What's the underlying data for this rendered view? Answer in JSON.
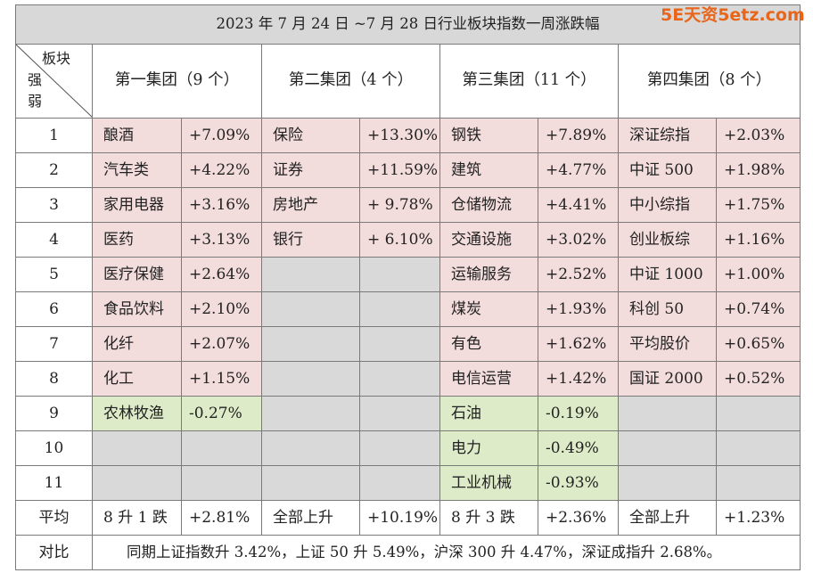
{
  "title": "2023 年 7 月 24 日 ~7 月 28 日行业板块指数一周涨跌幅",
  "corner": {
    "top": "板块",
    "bottom1": "强",
    "bottom2": "弱"
  },
  "groups": [
    "第一集团（9 个）",
    "第二集团（4 个）",
    "第三集团（11 个）",
    "第四集团（8 个）"
  ],
  "rows": [
    {
      "rank": "1",
      "cells": [
        {
          "n": "酿酒",
          "v": "+7.09%",
          "c": "pink"
        },
        {
          "n": "保险",
          "v": "+13.30%",
          "c": "pink"
        },
        {
          "n": "钢铁",
          "v": "+7.89%",
          "c": "pink"
        },
        {
          "n": "深证综指",
          "v": "+2.03%",
          "c": "pink"
        }
      ]
    },
    {
      "rank": "2",
      "cells": [
        {
          "n": "汽车类",
          "v": "+4.22%",
          "c": "pink"
        },
        {
          "n": "证券",
          "v": "+11.59%",
          "c": "pink"
        },
        {
          "n": "建筑",
          "v": "+4.77%",
          "c": "pink"
        },
        {
          "n": "中证 500",
          "v": "+1.98%",
          "c": "pink"
        }
      ]
    },
    {
      "rank": "3",
      "cells": [
        {
          "n": "家用电器",
          "v": "+3.16%",
          "c": "pink"
        },
        {
          "n": "房地产",
          "v": "+ 9.78%",
          "c": "pink"
        },
        {
          "n": "仓储物流",
          "v": "+4.41%",
          "c": "pink"
        },
        {
          "n": "中小综指",
          "v": "+1.75%",
          "c": "pink"
        }
      ]
    },
    {
      "rank": "4",
      "cells": [
        {
          "n": "医药",
          "v": "+3.13%",
          "c": "pink"
        },
        {
          "n": "银行",
          "v": "+ 6.10%",
          "c": "pink"
        },
        {
          "n": "交通设施",
          "v": "+3.02%",
          "c": "pink"
        },
        {
          "n": "创业板综",
          "v": "+1.16%",
          "c": "pink"
        }
      ]
    },
    {
      "rank": "5",
      "cells": [
        {
          "n": "医疗保健",
          "v": "+2.64%",
          "c": "pink"
        },
        {
          "n": "",
          "v": "",
          "c": "grey"
        },
        {
          "n": "运输服务",
          "v": "+2.52%",
          "c": "pink"
        },
        {
          "n": "中证 1000",
          "v": "+1.00%",
          "c": "pink"
        }
      ]
    },
    {
      "rank": "6",
      "cells": [
        {
          "n": "食品饮料",
          "v": "+2.10%",
          "c": "pink"
        },
        {
          "n": "",
          "v": "",
          "c": "grey"
        },
        {
          "n": "煤炭",
          "v": "+1.93%",
          "c": "pink"
        },
        {
          "n": "科创 50",
          "v": "+0.74%",
          "c": "pink"
        }
      ]
    },
    {
      "rank": "7",
      "cells": [
        {
          "n": "化纤",
          "v": "+2.07%",
          "c": "pink"
        },
        {
          "n": "",
          "v": "",
          "c": "grey"
        },
        {
          "n": "有色",
          "v": "+1.62%",
          "c": "pink"
        },
        {
          "n": "平均股价",
          "v": "+0.65%",
          "c": "pink"
        }
      ]
    },
    {
      "rank": "8",
      "cells": [
        {
          "n": "化工",
          "v": "+1.15%",
          "c": "pink"
        },
        {
          "n": "",
          "v": "",
          "c": "grey"
        },
        {
          "n": "电信运营",
          "v": "+1.42%",
          "c": "pink"
        },
        {
          "n": "国证 2000",
          "v": "+0.52%",
          "c": "pink"
        }
      ]
    },
    {
      "rank": "9",
      "cells": [
        {
          "n": "农林牧渔",
          "v": "-0.27%",
          "c": "green"
        },
        {
          "n": "",
          "v": "",
          "c": "grey"
        },
        {
          "n": "石油",
          "v": "-0.19%",
          "c": "green"
        },
        {
          "n": "",
          "v": "",
          "c": "grey"
        }
      ]
    },
    {
      "rank": "10",
      "cells": [
        {
          "n": "",
          "v": "",
          "c": "grey"
        },
        {
          "n": "",
          "v": "",
          "c": "grey"
        },
        {
          "n": "电力",
          "v": "-0.49%",
          "c": "green"
        },
        {
          "n": "",
          "v": "",
          "c": "grey"
        }
      ]
    },
    {
      "rank": "11",
      "cells": [
        {
          "n": "",
          "v": "",
          "c": "grey"
        },
        {
          "n": "",
          "v": "",
          "c": "grey"
        },
        {
          "n": "工业机械",
          "v": "-0.93%",
          "c": "green"
        },
        {
          "n": "",
          "v": "",
          "c": "grey"
        }
      ]
    }
  ],
  "average": {
    "label": "平均",
    "cells": [
      {
        "n": "8 升 1 跌",
        "v": "+2.81%"
      },
      {
        "n": "全部上升",
        "v": "+10.19%"
      },
      {
        "n": "8 升 3 跌",
        "v": "+2.36%"
      },
      {
        "n": "全部上升",
        "v": "+1.23%"
      }
    ]
  },
  "comparison": {
    "label": "对比",
    "text": "同期上证指数升 3.42%，上证 50 升 5.49%，沪深 300 升 4.47%，深证成指升 2.68%。"
  },
  "watermark": {
    "text": "5E天资5etz.com",
    "color": "#e8651a"
  },
  "colors": {
    "up": "#f3dcdc",
    "down": "#deebc8",
    "empty": "#d9d9d9",
    "title_bg": "#d8d8d8",
    "border": "#7a7a7a"
  }
}
